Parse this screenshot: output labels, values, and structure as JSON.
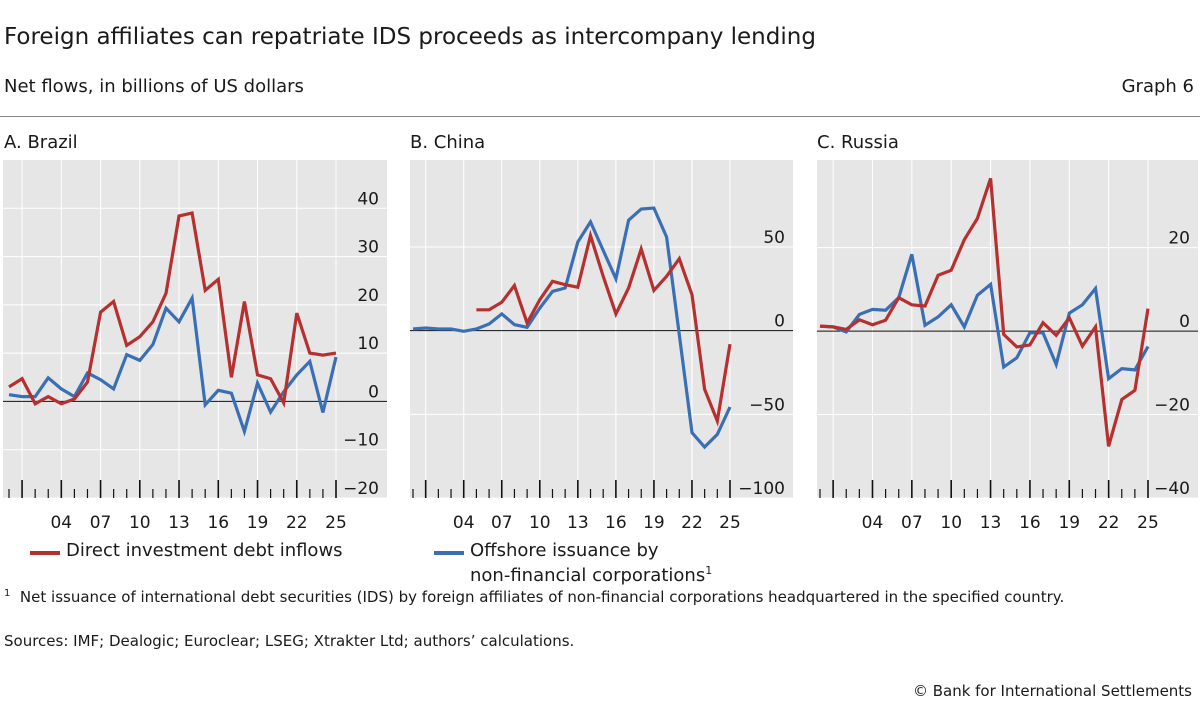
{
  "title": "Foreign affiliates can repatriate IDS proceeds as intercompany lending",
  "subtitle": "Net flows, in billions of US dollars",
  "graph_number": "Graph 6",
  "legend": [
    {
      "label": "Direct investment debt inflows",
      "color": "#b5302e"
    },
    {
      "label_line1": "Offshore issuance by",
      "label_line2": "non-financial corporations",
      "sup": "1",
      "color": "#3a6fb5"
    }
  ],
  "footnote": {
    "mark": "1",
    "text": "Net issuance of international debt securities (IDS) by foreign affiliates of non-financial corporations headquartered in the specified country."
  },
  "sources": "Sources: IMF; Dealogic; Euroclear; LSEG; Xtrakter Ltd; authors’ calculations.",
  "copyright": "© Bank for International Settlements",
  "colors": {
    "red": "#b5302e",
    "blue": "#3a6fb5",
    "plot_bg": "#e6e6e6"
  },
  "chart_data": [
    {
      "type": "line",
      "title": "A. Brazil",
      "x": [
        2000,
        2001,
        2002,
        2003,
        2004,
        2005,
        2006,
        2007,
        2008,
        2009,
        2010,
        2011,
        2012,
        2013,
        2014,
        2015,
        2016,
        2017,
        2018,
        2019,
        2020,
        2021,
        2022,
        2023,
        2024,
        2025
      ],
      "xlim": [
        2000,
        2025
      ],
      "xtick_labels": [
        "04",
        "07",
        "10",
        "13",
        "16",
        "19",
        "22",
        "25"
      ],
      "xtick_years": [
        2004,
        2007,
        2010,
        2013,
        2016,
        2019,
        2022,
        2025
      ],
      "ylim": [
        -20,
        50
      ],
      "yticks": [
        40,
        30,
        20,
        10,
        0,
        -10,
        -20
      ],
      "ytick_labels": [
        "40",
        "30",
        "20",
        "10",
        "0",
        "−10",
        "−20"
      ],
      "series": [
        {
          "name": "Direct investment debt inflows",
          "color": "red",
          "values": [
            3,
            4.7,
            -0.5,
            1,
            -0.5,
            0.5,
            4,
            18.5,
            20.7,
            11.6,
            13.4,
            16.5,
            22.4,
            38.4,
            39,
            23,
            25.3,
            5,
            20.7,
            5.5,
            4.7,
            -0.3,
            18.3,
            10,
            9.6,
            10
          ]
        },
        {
          "name": "Offshore issuance by non-financial corporations",
          "color": "blue",
          "values": [
            1.4,
            1,
            1,
            4.9,
            2.6,
            1,
            5.9,
            4.5,
            2.6,
            9.7,
            8.5,
            11.8,
            19.3,
            16.5,
            21.4,
            -0.7,
            2.3,
            1.7,
            -6.2,
            3.8,
            -2.2,
            2,
            5.5,
            8.3,
            -2.3,
            9.2
          ]
        }
      ]
    },
    {
      "type": "line",
      "title": "B. China",
      "x": [
        2000,
        2001,
        2002,
        2003,
        2004,
        2005,
        2006,
        2007,
        2008,
        2009,
        2010,
        2011,
        2012,
        2013,
        2014,
        2015,
        2016,
        2017,
        2018,
        2019,
        2020,
        2021,
        2022,
        2023,
        2024,
        2025
      ],
      "xlim": [
        2000,
        2025
      ],
      "xtick_labels": [
        "04",
        "07",
        "10",
        "13",
        "16",
        "19",
        "22",
        "25"
      ],
      "xtick_years": [
        2004,
        2007,
        2010,
        2013,
        2016,
        2019,
        2022,
        2025
      ],
      "ylim": [
        -100,
        102
      ],
      "yticks": [
        50,
        0,
        -50,
        -100
      ],
      "ytick_labels": [
        "50",
        "0",
        "−50",
        "−100"
      ],
      "series": [
        {
          "name": "Direct investment debt inflows",
          "color": "red",
          "values": [
            null,
            null,
            null,
            null,
            null,
            12.5,
            12.5,
            17,
            27,
            4.6,
            18.5,
            29.5,
            27.5,
            26,
            56.8,
            32.5,
            10,
            25.5,
            48.8,
            24,
            32.5,
            43,
            21.5,
            -35,
            -54,
            -8
          ]
        },
        {
          "name": "Offshore issuance by non-financial corporations",
          "color": "blue",
          "values": [
            1,
            1.6,
            1,
            1,
            -0.4,
            1,
            4,
            10,
            3.6,
            2,
            13.5,
            23.5,
            25.5,
            53,
            65,
            48,
            31,
            66,
            72.7,
            73.3,
            56,
            -2.4,
            -61,
            -69.5,
            -62,
            -45.6
          ]
        }
      ]
    },
    {
      "type": "line",
      "title": "C. Russia",
      "x": [
        2000,
        2001,
        2002,
        2003,
        2004,
        2005,
        2006,
        2007,
        2008,
        2009,
        2010,
        2011,
        2012,
        2013,
        2014,
        2015,
        2016,
        2017,
        2018,
        2019,
        2020,
        2021,
        2022,
        2023,
        2024,
        2025
      ],
      "xlim": [
        2000,
        2025
      ],
      "xtick_labels": [
        "04",
        "07",
        "10",
        "13",
        "16",
        "19",
        "22",
        "25"
      ],
      "xtick_years": [
        2004,
        2007,
        2010,
        2013,
        2016,
        2019,
        2022,
        2025
      ],
      "ylim": [
        -40,
        41
      ],
      "yticks": [
        20,
        0,
        -20,
        -40
      ],
      "ytick_labels": [
        "20",
        "0",
        "−20",
        "−40"
      ],
      "series": [
        {
          "name": "Direct investment debt inflows",
          "color": "red",
          "values": [
            1.2,
            1,
            0.4,
            2.7,
            1.5,
            2.6,
            8,
            6.3,
            6,
            13.4,
            14.6,
            21.9,
            27,
            36.6,
            -0.8,
            -3.8,
            -3.3,
            2,
            -1,
            3.2,
            -3.6,
            1,
            -27.6,
            -16.4,
            -14.2,
            5.4
          ]
        },
        {
          "name": "Offshore issuance by non-financial corporations",
          "color": "blue",
          "values": [
            1.2,
            1,
            -0.2,
            4,
            5.2,
            5,
            8,
            18.4,
            1.4,
            3.4,
            6.3,
            1,
            8.6,
            11.2,
            -8.6,
            -6.4,
            -0.4,
            -0.4,
            -8,
            4.3,
            6.3,
            10.2,
            -11.4,
            -9,
            -9.3,
            -3.7
          ]
        }
      ]
    }
  ]
}
